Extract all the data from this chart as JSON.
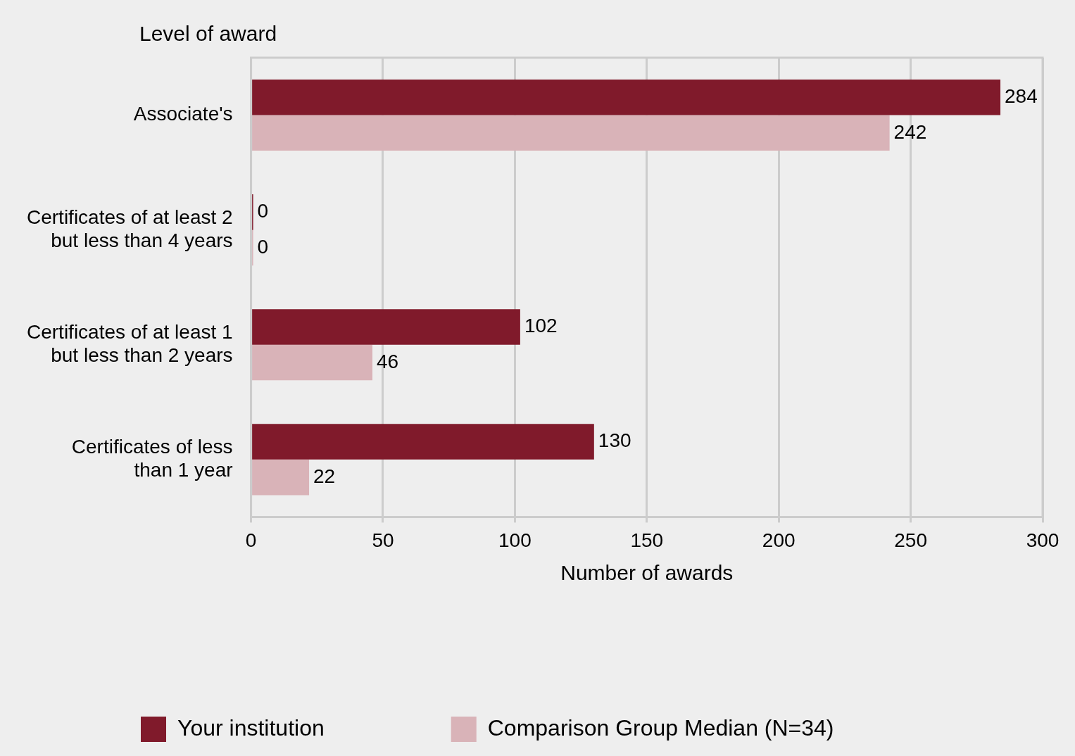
{
  "chart_data": {
    "type": "bar",
    "orientation": "horizontal",
    "ylabel": "Level of award",
    "xlabel": "Number of awards",
    "categories": [
      "Associate's",
      "Certificates of at least 2\nbut less than 4 years",
      "Certificates of at least 1\nbut less than 2 years",
      "Certificates of less\nthan 1 year"
    ],
    "series": [
      {
        "name": "Your institution",
        "color": "#801a2b",
        "values": [
          284,
          0,
          102,
          130
        ]
      },
      {
        "name": "Comparison Group Median (N=34)",
        "color": "#d9b3b8",
        "values": [
          242,
          0,
          46,
          22
        ]
      }
    ],
    "xlim": [
      0,
      300
    ],
    "xticks": [
      0,
      50,
      100,
      150,
      200,
      250,
      300
    ],
    "grid": "x",
    "legend": "bottom",
    "data_labels": true
  }
}
